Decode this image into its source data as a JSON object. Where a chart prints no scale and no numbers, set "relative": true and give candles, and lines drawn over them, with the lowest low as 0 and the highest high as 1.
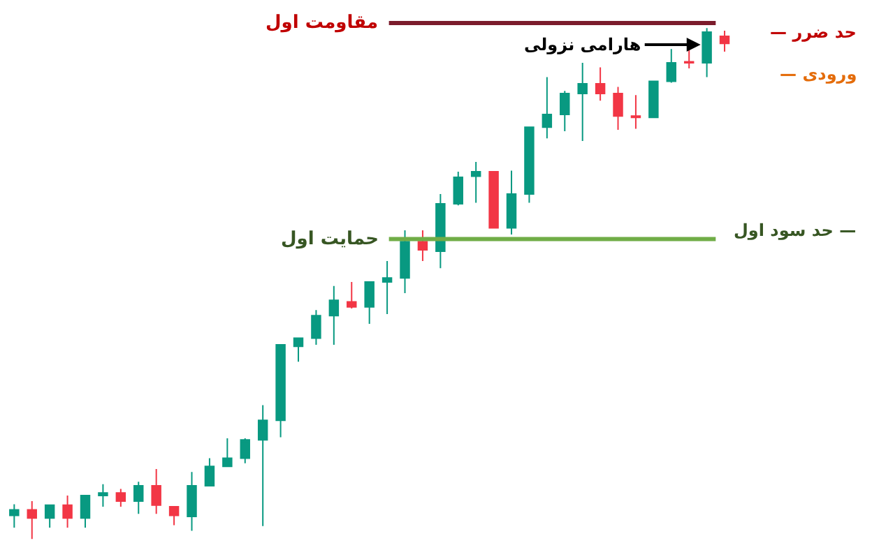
{
  "chart_data": {
    "type": "candlestick",
    "relative": true,
    "categories": [
      null,
      null,
      null,
      null,
      null,
      null,
      null,
      null,
      null,
      null,
      null,
      null,
      null,
      null,
      null,
      null,
      null,
      null,
      null,
      null,
      null,
      null,
      null,
      null,
      null,
      null,
      null,
      null,
      null,
      null,
      null,
      null,
      null,
      null,
      null,
      null,
      null,
      null,
      null,
      null,
      null
    ],
    "ohlc": [
      [
        0.046,
        0.068,
        0.022,
        0.057
      ],
      [
        0.057,
        0.074,
        0,
        0.041
      ],
      [
        0.041,
        0.066,
        0.022,
        0.066
      ],
      [
        0.066,
        0.085,
        0.022,
        0.041
      ],
      [
        0.041,
        0.085,
        0.022,
        0.085
      ],
      [
        0.085,
        0.107,
        0.063,
        0.09
      ],
      [
        0.09,
        0.098,
        0.063,
        0.074
      ],
      [
        0.074,
        0.112,
        0.049,
        0.104
      ],
      [
        0.104,
        0.137,
        0.049,
        0.066
      ],
      [
        0.063,
        0.063,
        0.027,
        0.046
      ],
      [
        0.044,
        0.131,
        0.016,
        0.104
      ],
      [
        0.104,
        0.158,
        0.104,
        0.142
      ],
      [
        0.142,
        0.197,
        0.142,
        0.158
      ],
      [
        0.158,
        0.197,
        0.148,
        0.194
      ],
      [
        0.194,
        0.262,
        0.025,
        0.232
      ],
      [
        0.232,
        0.38,
        0.199,
        0.38
      ],
      [
        0.377,
        0.393,
        0.347,
        0.393
      ],
      [
        0.393,
        0.448,
        0.38,
        0.437
      ],
      [
        0.437,
        0.495,
        0.38,
        0.467
      ],
      [
        0.464,
        0.503,
        0.451,
        0.454
      ],
      [
        0.454,
        0.503,
        0.421,
        0.503
      ],
      [
        0.503,
        0.544,
        0.44,
        0.511
      ],
      [
        0.511,
        0.604,
        0.481,
        0.582
      ],
      [
        0.582,
        0.604,
        0.544,
        0.566
      ],
      [
        0.563,
        0.675,
        0.53,
        0.656
      ],
      [
        0.656,
        0.719,
        0.653,
        0.708
      ],
      [
        0.71,
        0.738,
        0.658,
        0.719
      ],
      [
        0.719,
        0.719,
        0.609,
        0.609
      ],
      [
        0.609,
        0.721,
        0.596,
        0.675
      ],
      [
        0.675,
        0.806,
        0.658,
        0.806
      ],
      [
        0.806,
        0.904,
        0.784,
        0.831
      ],
      [
        0.831,
        0.877,
        0.798,
        0.872
      ],
      [
        0.872,
        0.932,
        0.779,
        0.891
      ],
      [
        0.891,
        0.923,
        0.858,
        0.872
      ],
      [
        0.872,
        0.885,
        0.801,
        0.828
      ],
      [
        0.828,
        0.869,
        0.803,
        0.825
      ],
      [
        0.825,
        0.896,
        0.825,
        0.896
      ],
      [
        0.896,
        0.959,
        0.893,
        0.932
      ],
      [
        0.934,
        0.959,
        0.921,
        0.932
      ],
      [
        0.932,
        1,
        0.904,
        0.992
      ],
      [
        0.984,
        0.995,
        0.954,
        0.97
      ]
    ],
    "colors": [
      "#089981",
      "#f23645",
      "#089981",
      "#f23645",
      "#089981",
      "#089981",
      "#f23645",
      "#089981",
      "#f23645",
      "#f23645",
      "#089981",
      "#089981",
      "#089981",
      "#089981",
      "#089981",
      "#089981",
      "#089981",
      "#089981",
      "#089981",
      "#f23645",
      "#089981",
      "#089981",
      "#089981",
      "#f23645",
      "#089981",
      "#089981",
      "#089981",
      "#f23645",
      "#089981",
      "#089981",
      "#089981",
      "#089981",
      "#089981",
      "#f23645",
      "#f23645",
      "#f23645",
      "#089981",
      "#089981",
      "#f23645",
      "#089981",
      "#f23645"
    ],
    "ref_lines": [
      {
        "axis": "y",
        "value": 1.01,
        "label": "مقاومت اول",
        "color": "#7b1c2c"
      },
      {
        "axis": "y",
        "value": 0.587,
        "label": "حمایت اول",
        "color": "#70ad47"
      }
    ],
    "annotations": [
      "هارامی نزولی",
      "— حد ضرر",
      "— ورودی",
      "حد سود اول —"
    ]
  }
}
